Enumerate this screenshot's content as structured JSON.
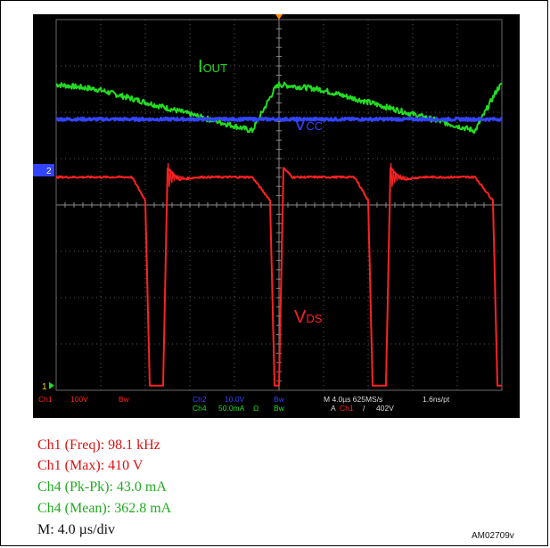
{
  "chart_data": {
    "type": "line",
    "title": "",
    "xlabel": "",
    "ylabel": "",
    "x_divisions": 10,
    "y_divisions": 8,
    "grid": true,
    "series": [
      {
        "name": "IOUT",
        "label_main": "I",
        "label_sub": "OUT",
        "color": "#22dd22",
        "channel": "Ch4",
        "x": [
          0,
          0.9,
          4.4,
          4.9,
          5.0,
          5.9,
          9.4,
          9.9,
          10
        ],
        "y": [
          6.6,
          6.5,
          5.6,
          6.5,
          6.6,
          6.5,
          5.6,
          6.5,
          6.6
        ]
      },
      {
        "name": "VCC",
        "label_main": "V",
        "label_sub": "CC",
        "color": "#3344ff",
        "channel": "Ch2",
        "x": [
          0,
          10
        ],
        "y": [
          5.85,
          5.85
        ]
      },
      {
        "name": "VDS",
        "label_main": "V",
        "label_sub": "DS",
        "color": "#ff2222",
        "channel": "Ch1",
        "x": [
          0,
          0.1,
          1.7,
          2.0,
          2.1,
          2.4,
          2.5,
          2.75,
          3.2,
          4.4,
          4.8,
          4.9,
          5.0,
          5.1,
          5.3,
          6.7,
          7.0,
          7.1,
          7.4,
          7.5,
          7.75,
          8.2,
          9.4,
          9.8,
          9.9,
          10
        ],
        "y": [
          4.6,
          4.6,
          4.6,
          4.1,
          0.1,
          0.1,
          4.8,
          4.55,
          4.6,
          4.6,
          4.1,
          0.1,
          0.1,
          4.8,
          4.6,
          4.6,
          4.1,
          0.1,
          0.1,
          4.8,
          4.55,
          4.6,
          4.6,
          4.1,
          0.1,
          0.1
        ]
      }
    ],
    "markers": {
      "ch2_marker": "2",
      "ch1_marker": "1",
      "trigger_x": 5.0
    }
  },
  "readouts": {
    "ch1": "Ch1",
    "ch1_scale": "100V",
    "ch1_bw": "Bw",
    "ch2": "Ch2",
    "ch2_scale": "10.0V",
    "ch2_bw": "Bw",
    "ch4": "Ch4",
    "ch4_scale": "50.0mA",
    "ch4_ohm": "Ω",
    "ch4_bw": "Bw",
    "timebase": "M 4.0µs 625MS/s",
    "record": "1.6ns/pt",
    "trigger_prefix": "A",
    "trigger_ch": "Ch1",
    "trigger_slope": "/",
    "trigger_level": "402V"
  },
  "measurements": [
    {
      "text": "Ch1 (Freq): 98.1 kHz",
      "color": "#dd1111"
    },
    {
      "text": "Ch1 (Max): 410 V",
      "color": "#dd1111"
    },
    {
      "text": "Ch4 (Pk-Pk): 43.0 mA",
      "color": "#22aa22"
    },
    {
      "text": "Ch4 (Mean): 362.8 mA",
      "color": "#22aa22"
    },
    {
      "text": "M: 4.0 µs/div",
      "color": "#111111"
    }
  ],
  "figure_id": "AM02709v"
}
